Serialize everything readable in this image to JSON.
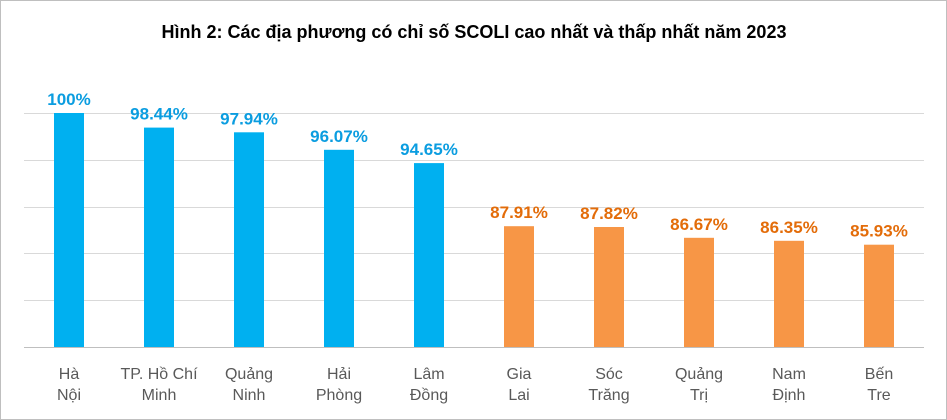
{
  "chart_data": {
    "type": "bar",
    "title": "Hình 2: Các địa phương có chỉ số SCOLI cao nhất và thấp nhất năm 2023",
    "categories": [
      [
        "Hà",
        "Nội"
      ],
      [
        "TP. Hồ Chí",
        "Minh"
      ],
      [
        "Quảng",
        "Ninh"
      ],
      [
        "Hải",
        "Phòng"
      ],
      [
        "Lâm",
        "Đồng"
      ],
      [
        "Gia",
        "Lai"
      ],
      [
        "Sóc",
        "Trăng"
      ],
      [
        "Quảng",
        "Trị"
      ],
      [
        "Nam",
        "Định"
      ],
      [
        "Bến",
        "Tre"
      ]
    ],
    "values": [
      100,
      98.44,
      97.94,
      96.07,
      94.65,
      87.91,
      87.82,
      86.67,
      86.35,
      85.93
    ],
    "labels": [
      "100%",
      "98.44%",
      "97.94%",
      "96.07%",
      "94.65%",
      "87.91%",
      "87.82%",
      "86.67%",
      "86.35%",
      "85.93%"
    ],
    "bar_colors": [
      "#00b0f0",
      "#00b0f0",
      "#00b0f0",
      "#00b0f0",
      "#00b0f0",
      "#f79646",
      "#f79646",
      "#f79646",
      "#f79646",
      "#f79646"
    ],
    "label_colors": [
      "#0b9de0",
      "#0b9de0",
      "#0b9de0",
      "#0b9de0",
      "#0b9de0",
      "#e36c09",
      "#e36c09",
      "#e36c09",
      "#e36c09",
      "#e36c09"
    ],
    "ylim": [
      75,
      100
    ],
    "gridline_values": [
      75,
      80,
      85,
      90,
      95,
      100
    ],
    "grid": true,
    "legend": "none",
    "gridline_color": "#d9d9d9"
  }
}
